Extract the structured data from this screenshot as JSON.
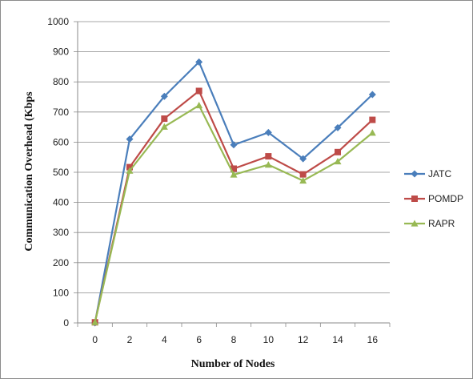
{
  "chart_data": {
    "type": "line",
    "title": "",
    "xlabel": "Number of Nodes",
    "ylabel": "Communication Overhead (Kbps",
    "categories": [
      "0",
      "2",
      "4",
      "6",
      "8",
      "10",
      "12",
      "14",
      "16"
    ],
    "ylim": [
      0,
      1000
    ],
    "ytick_step": 100,
    "yticks": [
      "0",
      "100",
      "200",
      "300",
      "400",
      "500",
      "600",
      "700",
      "800",
      "900",
      "1000"
    ],
    "grid": true,
    "legend_position": "right",
    "series": [
      {
        "name": "JATC",
        "color": "#4a7ebb",
        "marker": "diamond",
        "values": [
          0,
          610,
          752,
          866,
          591,
          632,
          545,
          648,
          758
        ]
      },
      {
        "name": "POMDP",
        "color": "#be4b48",
        "marker": "square",
        "values": [
          2,
          517,
          678,
          770,
          512,
          553,
          493,
          567,
          674
        ]
      },
      {
        "name": "RAPR",
        "color": "#98b954",
        "marker": "triangle",
        "values": [
          2,
          505,
          651,
          722,
          492,
          525,
          472,
          536,
          631
        ]
      }
    ]
  }
}
